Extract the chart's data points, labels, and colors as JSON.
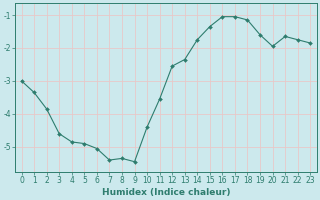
{
  "x": [
    0,
    1,
    2,
    3,
    4,
    5,
    6,
    7,
    8,
    9,
    10,
    11,
    12,
    13,
    14,
    15,
    16,
    17,
    18,
    19,
    20,
    21,
    22,
    23
  ],
  "y": [
    -3.0,
    -3.35,
    -3.85,
    -4.6,
    -4.85,
    -4.9,
    -5.05,
    -5.4,
    -5.35,
    -5.45,
    -4.4,
    -3.55,
    -2.55,
    -2.35,
    -1.75,
    -1.35,
    -1.05,
    -1.05,
    -1.15,
    -1.6,
    -1.95,
    -1.65,
    -1.75,
    -1.85
  ],
  "line_color": "#2e7d6e",
  "marker": "D",
  "marker_size": 2,
  "bg_color": "#cce9ed",
  "grid_color": "#e8c8c8",
  "tick_color": "#2e7d6e",
  "xlabel": "Humidex (Indice chaleur)",
  "xlim": [
    -0.5,
    23.5
  ],
  "ylim": [
    -5.75,
    -0.65
  ],
  "yticks": [
    -5,
    -4,
    -3,
    -2,
    -1
  ],
  "xticks": [
    0,
    1,
    2,
    3,
    4,
    5,
    6,
    7,
    8,
    9,
    10,
    11,
    12,
    13,
    14,
    15,
    16,
    17,
    18,
    19,
    20,
    21,
    22,
    23
  ],
  "label_fontsize": 6.5,
  "tick_fontsize": 5.5
}
